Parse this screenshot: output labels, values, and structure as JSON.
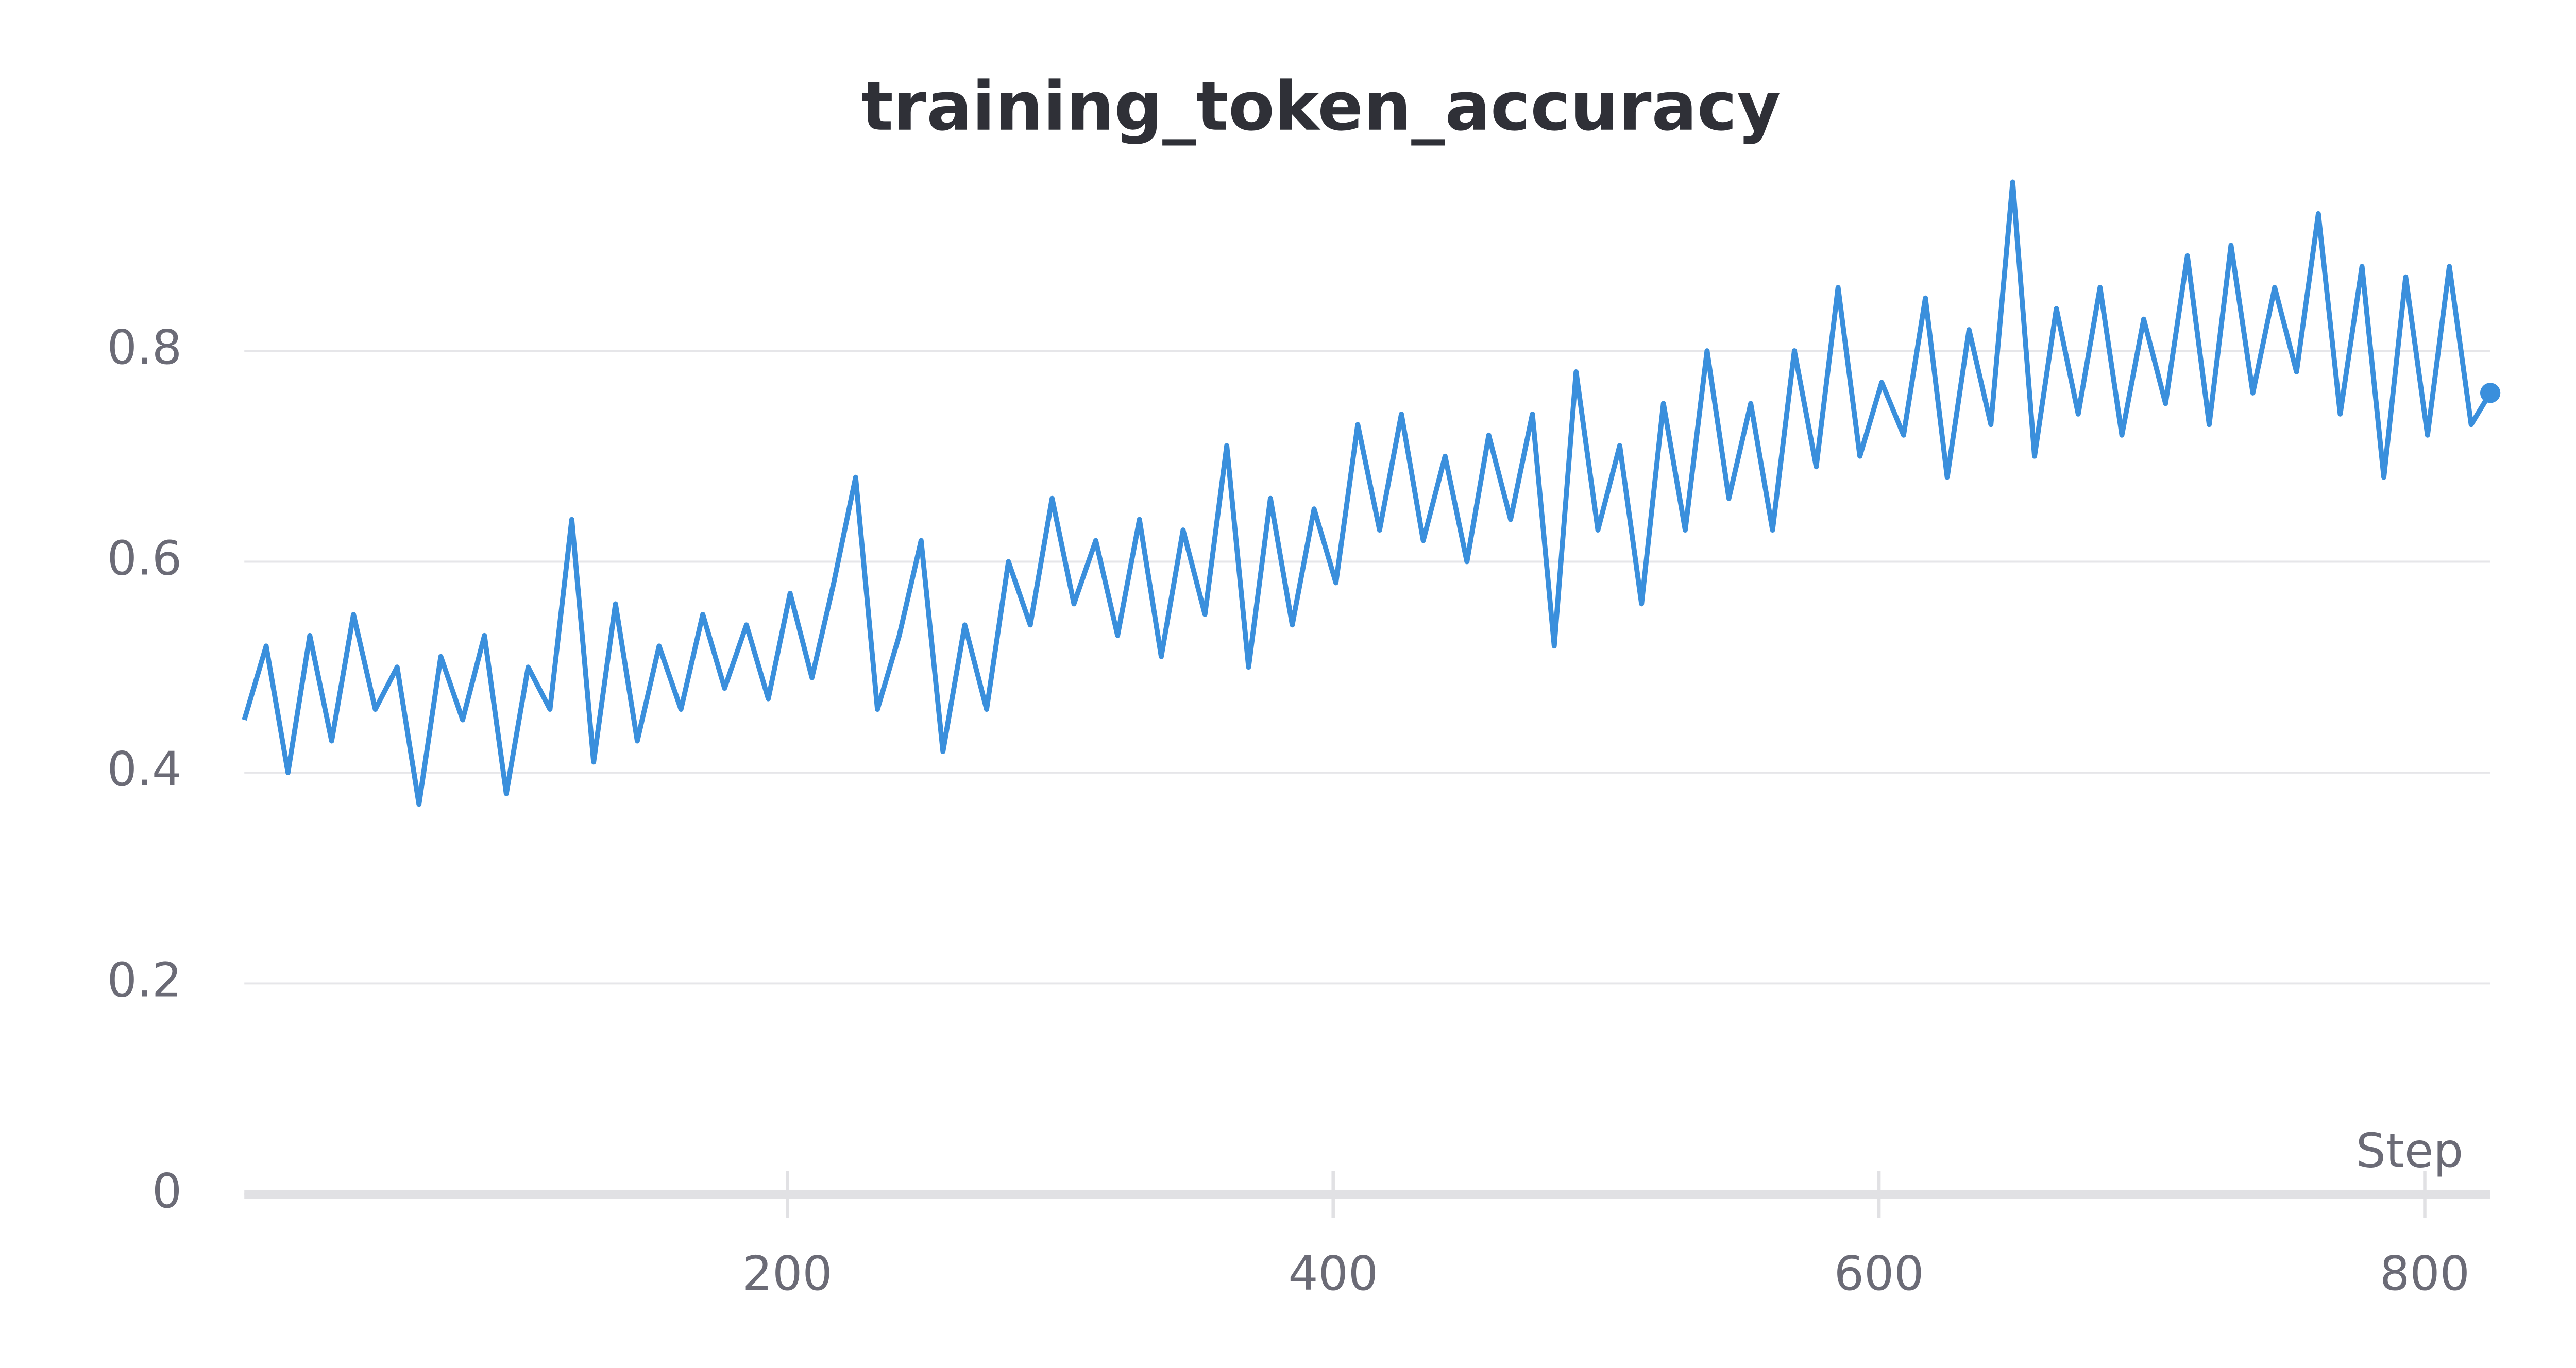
{
  "chart_data": {
    "type": "line",
    "title": "training_token_accuracy",
    "x_label": "Step",
    "x": [
      1,
      9,
      17,
      25,
      33,
      41,
      49,
      57,
      65,
      73,
      81,
      89,
      97,
      105,
      113,
      121,
      129,
      137,
      145,
      153,
      161,
      169,
      177,
      185,
      193,
      201,
      209,
      217,
      225,
      233,
      241,
      249,
      257,
      265,
      273,
      281,
      289,
      297,
      305,
      313,
      321,
      329,
      337,
      345,
      353,
      361,
      369,
      377,
      385,
      393,
      401,
      409,
      417,
      425,
      433,
      441,
      449,
      457,
      465,
      473,
      481,
      489,
      497,
      505,
      513,
      521,
      529,
      537,
      545,
      553,
      561,
      569,
      577,
      585,
      593,
      601,
      609,
      617,
      625,
      633,
      641,
      649,
      657,
      665,
      673,
      681,
      689,
      697,
      705,
      713,
      721,
      729,
      737,
      745,
      753,
      761,
      769,
      777,
      785,
      793,
      801,
      809,
      817,
      824
    ],
    "series": [
      {
        "name": "training_token_accuracy",
        "color": "#3a8fdc",
        "values": [
          0.45,
          0.52,
          0.4,
          0.53,
          0.43,
          0.55,
          0.46,
          0.5,
          0.37,
          0.51,
          0.45,
          0.53,
          0.38,
          0.5,
          0.46,
          0.64,
          0.41,
          0.56,
          0.43,
          0.52,
          0.46,
          0.55,
          0.48,
          0.54,
          0.47,
          0.57,
          0.49,
          0.58,
          0.68,
          0.46,
          0.53,
          0.62,
          0.42,
          0.54,
          0.46,
          0.6,
          0.54,
          0.66,
          0.56,
          0.62,
          0.53,
          0.64,
          0.51,
          0.63,
          0.55,
          0.71,
          0.5,
          0.66,
          0.54,
          0.65,
          0.58,
          0.73,
          0.63,
          0.74,
          0.62,
          0.7,
          0.6,
          0.72,
          0.64,
          0.74,
          0.52,
          0.78,
          0.63,
          0.71,
          0.56,
          0.75,
          0.63,
          0.8,
          0.66,
          0.75,
          0.63,
          0.8,
          0.69,
          0.86,
          0.7,
          0.77,
          0.72,
          0.85,
          0.68,
          0.82,
          0.73,
          0.96,
          0.7,
          0.84,
          0.74,
          0.86,
          0.72,
          0.83,
          0.75,
          0.89,
          0.73,
          0.9,
          0.76,
          0.86,
          0.78,
          0.93,
          0.74,
          0.88,
          0.68,
          0.87,
          0.72,
          0.88,
          0.73,
          0.76
        ]
      }
    ],
    "xlim": [
      1,
      824
    ],
    "ylim": [
      0,
      0.96
    ],
    "xticks": [
      200,
      400,
      600,
      800
    ],
    "yticks": [
      0,
      0.2,
      0.4,
      0.6,
      0.8
    ],
    "grid": true
  }
}
